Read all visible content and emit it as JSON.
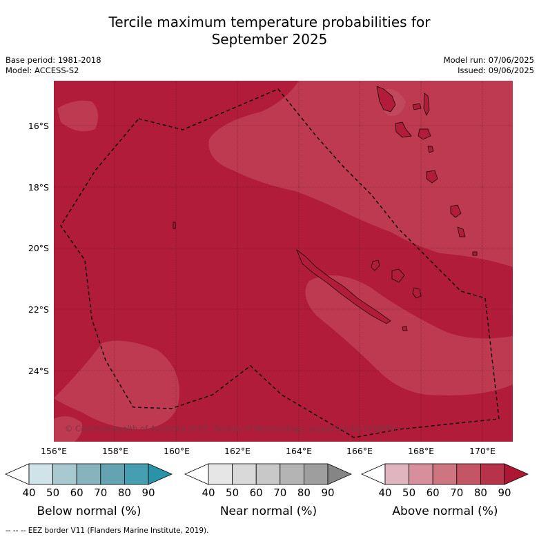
{
  "title_line1": "Tercile maximum temperature probabilities for",
  "title_line2": "September 2025",
  "meta_left": [
    "Base period: 1981-2018",
    "Model: ACCESS-S2"
  ],
  "meta_right": [
    "Model run: 07/06/2025",
    "Issued: 09/06/2025"
  ],
  "lat_labels": [
    "16°S",
    "18°S",
    "20°S",
    "22°S",
    "24°S"
  ],
  "lon_labels": [
    "156°E",
    "158°E",
    "160°E",
    "162°E",
    "164°E",
    "166°E",
    "168°E",
    "170°E"
  ],
  "copyright": "© Commonwealth of Australia 2025, Bureau of Meteorology, supported by COSPPac",
  "colorbars": [
    {
      "label": "Below normal (%)",
      "ticks": [
        "40",
        "50",
        "60",
        "70",
        "80",
        "90"
      ],
      "colors": [
        "#ffffff",
        "#cfe3e8",
        "#a8c9cf",
        "#87b3bd",
        "#64a3b1",
        "#459fb0",
        "#2a93a8"
      ]
    },
    {
      "label": "Near normal (%)",
      "ticks": [
        "40",
        "50",
        "60",
        "70",
        "80",
        "90"
      ],
      "colors": [
        "#ffffff",
        "#e6e6e6",
        "#d9d9d9",
        "#c8c8c8",
        "#b4b4b4",
        "#9e9e9e",
        "#858585"
      ]
    },
    {
      "label": "Above normal (%)",
      "ticks": [
        "40",
        "50",
        "60",
        "70",
        "80",
        "90"
      ],
      "colors": [
        "#ffffff",
        "#e0b5bf",
        "#d78f9b",
        "#cd7580",
        "#c35565",
        "#b8324a",
        "#ac1733"
      ]
    }
  ],
  "footer": "--  --  -- EEZ border V11 (Flanders Marine Institute, 2019).",
  "colors": {
    "above_80": "#b01c39",
    "above_70": "#bd3a50"
  }
}
